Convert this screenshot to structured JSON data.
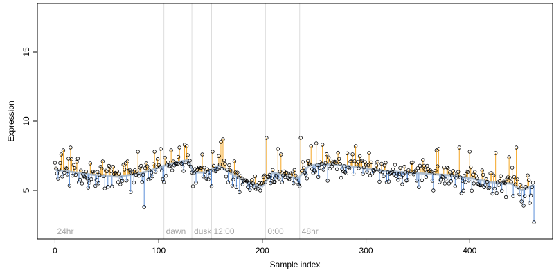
{
  "chart_data": {
    "type": "scatter",
    "title": "",
    "xlabel": "Sample index",
    "ylabel": "Expression",
    "xlim": [
      -17,
      480
    ],
    "ylim": [
      1.5,
      18.5
    ],
    "x_ticks": [
      0,
      100,
      200,
      300,
      400
    ],
    "y_ticks": [
      5,
      10,
      15
    ],
    "grid": false,
    "legend": "none",
    "colors": {
      "above_fit": "#f5a623",
      "below_fit": "#5b8fd9",
      "fit_line": "#a0b4cc",
      "points": "#000000",
      "phase_lines": "#dddddd",
      "phase_text": "#a6a6a6"
    },
    "phase_markers": [
      {
        "label": "24hr",
        "x": 0
      },
      {
        "label": "dawn",
        "x": 105
      },
      {
        "label": "dusk",
        "x": 132
      },
      {
        "label": "12:00",
        "x": 151
      },
      {
        "label": "0:00",
        "x": 203
      },
      {
        "label": "48hr",
        "x": 236
      }
    ],
    "fit_points": [
      [
        0,
        6.5
      ],
      [
        20,
        6.3
      ],
      [
        40,
        6.1
      ],
      [
        60,
        6.0
      ],
      [
        80,
        6.2
      ],
      [
        90,
        6.4
      ],
      [
        110,
        6.9
      ],
      [
        128,
        7.2
      ],
      [
        134,
        6.3
      ],
      [
        145,
        6.3
      ],
      [
        158,
        6.8
      ],
      [
        170,
        6.2
      ],
      [
        185,
        5.6
      ],
      [
        200,
        5.3
      ],
      [
        210,
        6.3
      ],
      [
        225,
        6.0
      ],
      [
        235,
        5.9
      ],
      [
        245,
        6.8
      ],
      [
        260,
        6.9
      ],
      [
        280,
        6.8
      ],
      [
        300,
        6.6
      ],
      [
        320,
        6.4
      ],
      [
        340,
        6.3
      ],
      [
        360,
        6.2
      ],
      [
        380,
        6.1
      ],
      [
        400,
        5.9
      ],
      [
        420,
        5.6
      ],
      [
        440,
        5.5
      ],
      [
        450,
        5.0
      ],
      [
        462,
        5.4
      ]
    ],
    "outliers": [
      [
        6,
        7.6
      ],
      [
        8,
        7.9
      ],
      [
        13,
        7.3
      ],
      [
        15,
        8.1
      ],
      [
        26,
        5.5
      ],
      [
        32,
        5.2
      ],
      [
        46,
        7.1
      ],
      [
        70,
        7.1
      ],
      [
        73,
        4.9
      ],
      [
        80,
        7.8
      ],
      [
        86,
        3.8
      ],
      [
        96,
        7.8
      ],
      [
        102,
        8.0
      ],
      [
        112,
        7.9
      ],
      [
        120,
        8.1
      ],
      [
        125,
        8.3
      ],
      [
        127,
        8.2
      ],
      [
        133,
        5.3
      ],
      [
        142,
        7.6
      ],
      [
        151,
        5.3
      ],
      [
        152,
        7.8
      ],
      [
        160,
        8.5
      ],
      [
        162,
        8.7
      ],
      [
        198,
        5.0
      ],
      [
        204,
        8.8
      ],
      [
        215,
        8.0
      ],
      [
        218,
        7.6
      ],
      [
        236,
        5.3
      ],
      [
        237,
        8.8
      ],
      [
        247,
        8.2
      ],
      [
        252,
        8.4
      ],
      [
        258,
        8.3
      ],
      [
        263,
        5.7
      ],
      [
        290,
        8.2
      ],
      [
        303,
        7.7
      ],
      [
        320,
        5.6
      ],
      [
        355,
        7.2
      ],
      [
        365,
        5.0
      ],
      [
        368,
        7.9
      ],
      [
        370,
        8.0
      ],
      [
        390,
        8.1
      ],
      [
        392,
        4.8
      ],
      [
        400,
        7.8
      ],
      [
        425,
        7.7
      ],
      [
        438,
        7.4
      ],
      [
        442,
        4.6
      ],
      [
        445,
        8.1
      ],
      [
        450,
        4.2
      ],
      [
        452,
        3.9
      ],
      [
        458,
        4.1
      ],
      [
        462,
        2.7
      ]
    ]
  }
}
